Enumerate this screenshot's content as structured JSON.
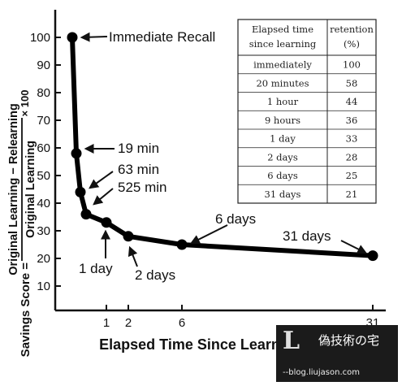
{
  "chart_data": {
    "type": "line",
    "x_axis_title": "Elapsed Time Since Learning",
    "y_axis_prefix": "Savings Score = ",
    "y_axis_numerator": "Original Learning − Relearning",
    "y_axis_denominator": "Original Learning",
    "y_axis_multiplier": "× 100",
    "ylim": [
      0,
      100
    ],
    "y_ticks": [
      10,
      20,
      30,
      40,
      50,
      60,
      70,
      80,
      90,
      100
    ],
    "x_ticks": [
      "1",
      "2",
      "6",
      "31"
    ],
    "x_tick_values": [
      1,
      2,
      6,
      31
    ],
    "xlim": [
      0,
      31
    ],
    "points": [
      {
        "x": 0,
        "y": 100
      },
      {
        "x": 0.014,
        "y": 58
      },
      {
        "x": 0.042,
        "y": 44
      },
      {
        "x": 0.375,
        "y": 36
      },
      {
        "x": 1,
        "y": 33
      },
      {
        "x": 2,
        "y": 28
      },
      {
        "x": 6,
        "y": 25
      },
      {
        "x": 31,
        "y": 21
      }
    ],
    "annotations": [
      {
        "label": "Immediate Recall"
      },
      {
        "label": "19 min"
      },
      {
        "label": "63 min"
      },
      {
        "label": "525 min"
      },
      {
        "label": "1 day"
      },
      {
        "label": "2 days"
      },
      {
        "label": "6 days"
      },
      {
        "label": "31 days"
      }
    ],
    "table": {
      "headers": [
        [
          "Elapsed time",
          "since learning"
        ],
        [
          "retention",
          "(%)"
        ]
      ],
      "rows": [
        [
          "immediately",
          "100"
        ],
        [
          "20 minutes",
          "58"
        ],
        [
          "1 hour",
          "44"
        ],
        [
          "9 hours",
          "36"
        ],
        [
          "1 day",
          "33"
        ],
        [
          "2 days",
          "28"
        ],
        [
          "6 days",
          "25"
        ],
        [
          "31 days",
          "21"
        ]
      ]
    }
  },
  "watermark": {
    "logo": "L",
    "name": "偽技術の宅",
    "site": "--blog.liujason.com"
  },
  "colors": {
    "line": "#000000",
    "background": "#ffffff",
    "watermark_bg": "#1b1b1b"
  }
}
